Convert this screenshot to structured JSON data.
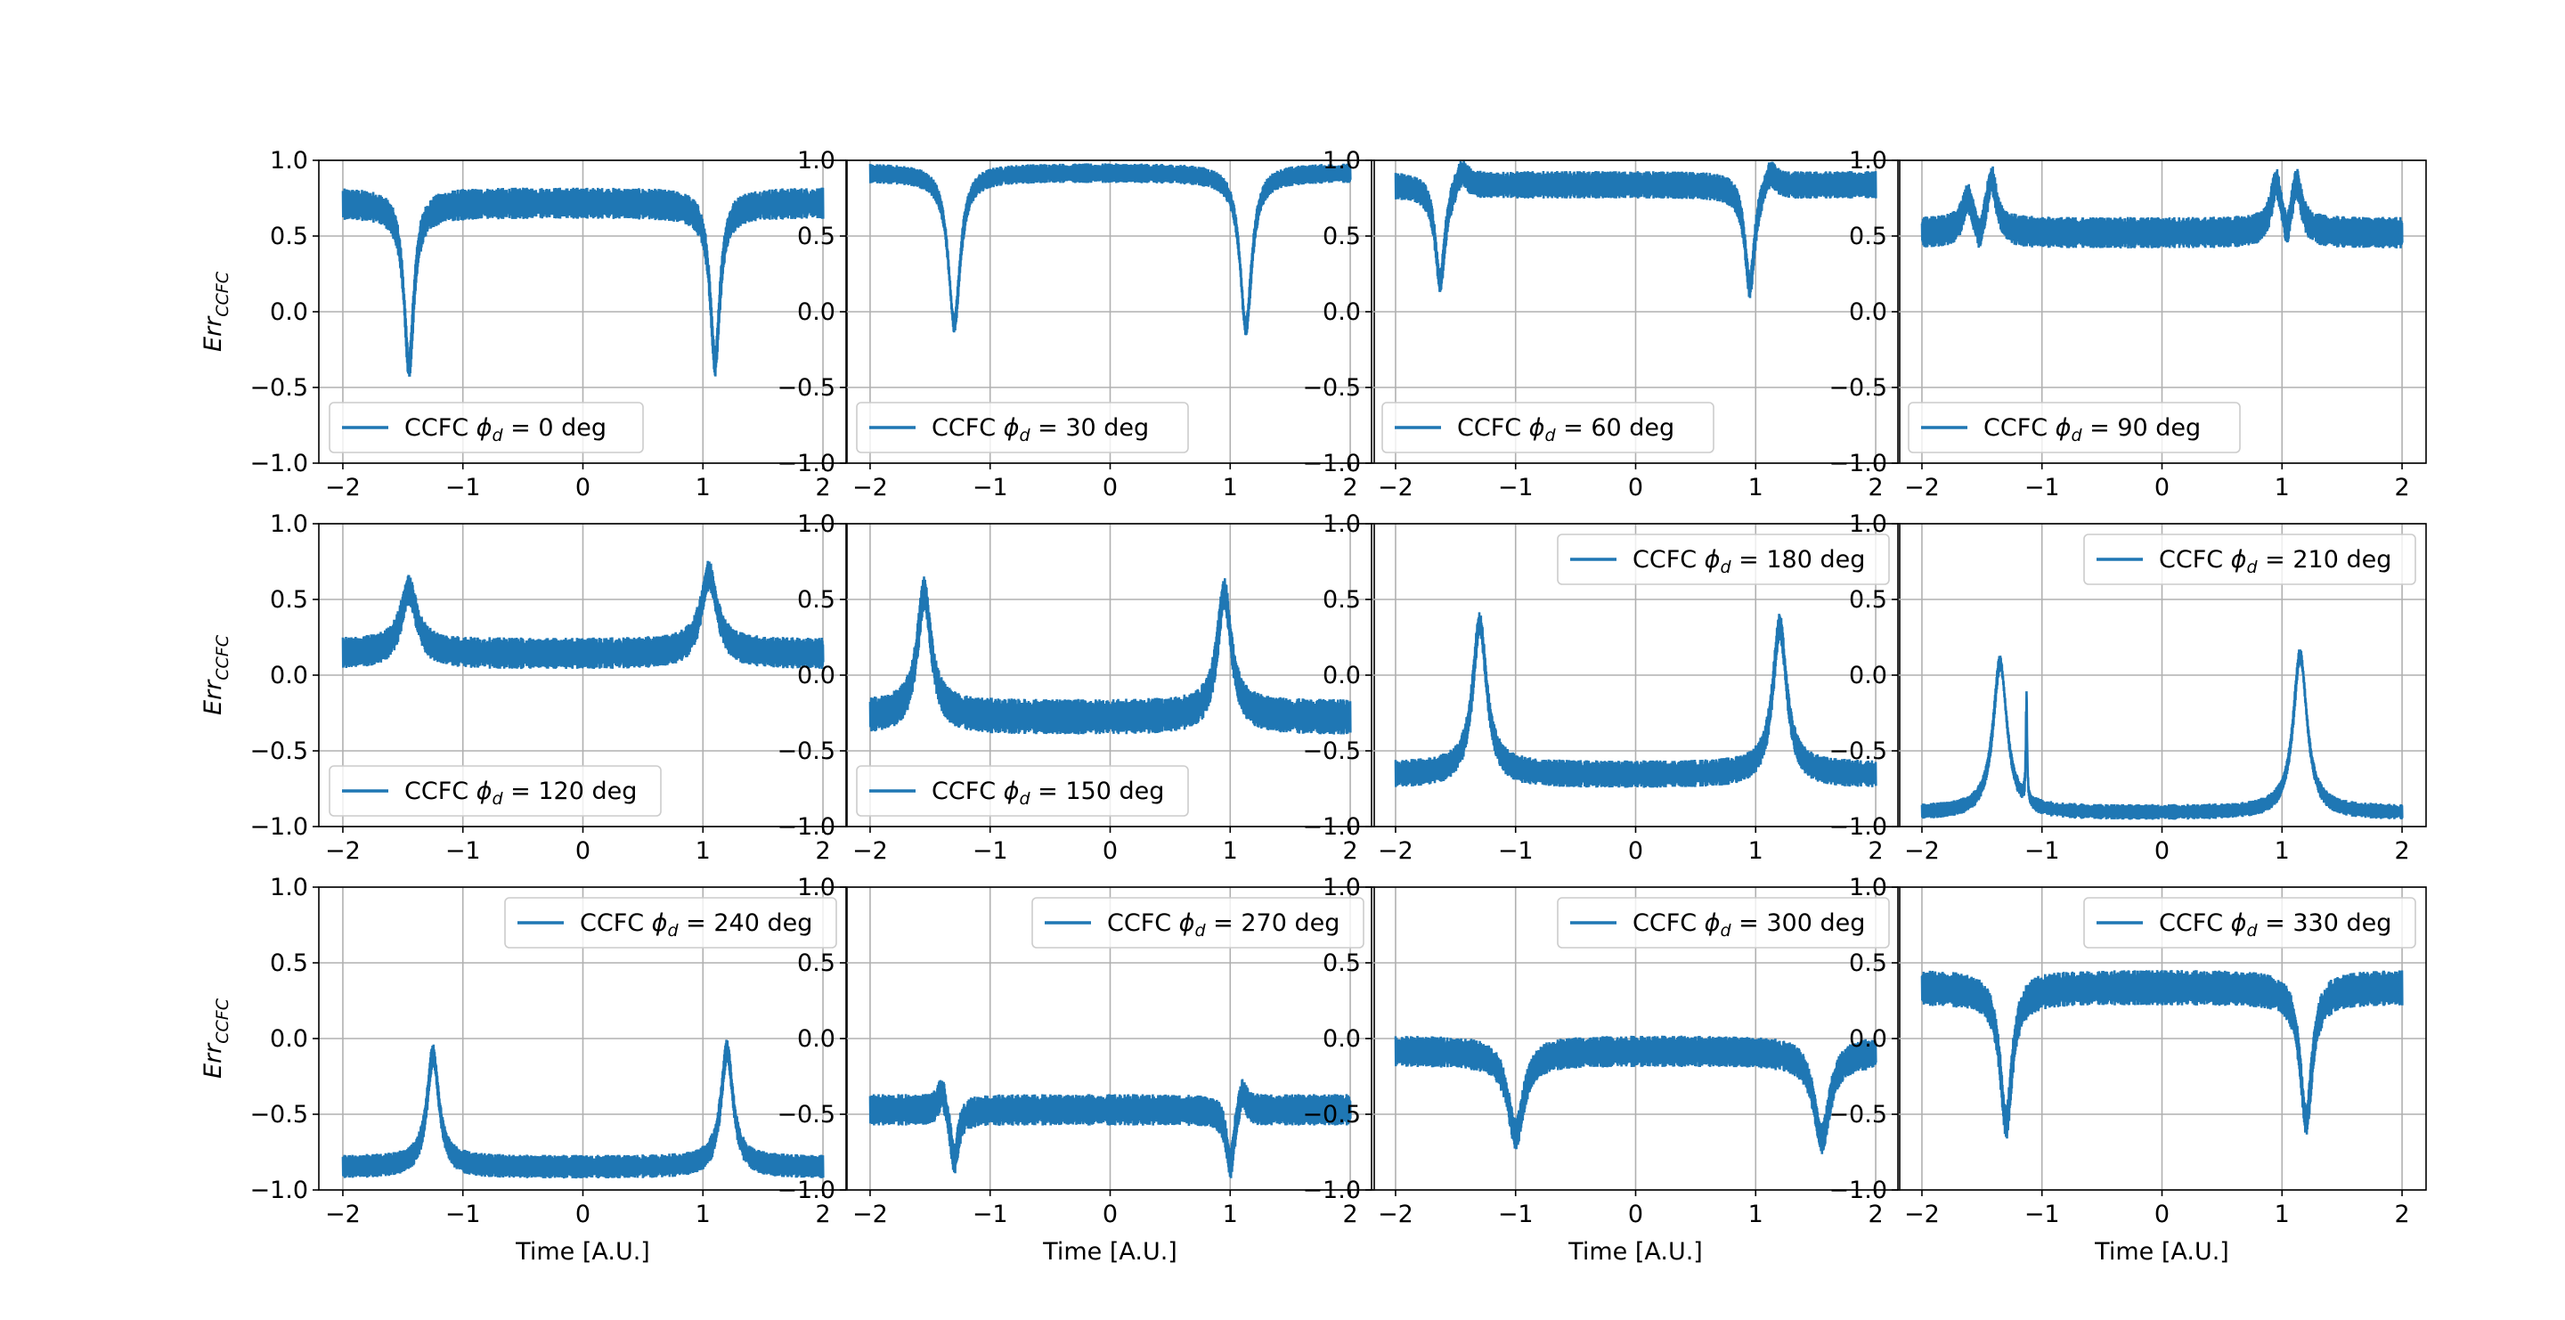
{
  "figure": {
    "series_color": "#1f77b4",
    "x_label": "Time [A.U.]",
    "y_label_base": "Err",
    "y_label_sub": "CCFC"
  },
  "chart_data": [
    {
      "type": "line",
      "legend": "CCFC φd = 0 deg",
      "legend_prefix": "CCFC ",
      "legend_suffix": " =  0 deg",
      "legend_loc": "lower-left",
      "xlim": [
        -2,
        2
      ],
      "ylim": [
        -1,
        1
      ],
      "xticks": [
        -2,
        -1,
        0,
        1,
        2
      ],
      "yticks": [
        -1.0,
        -0.5,
        0.0,
        0.5,
        1.0
      ],
      "baseline": 0.72,
      "spread": 0.08,
      "features": [
        {
          "x": -1.45,
          "depth": -1.08,
          "width": 0.05
        },
        {
          "x": 1.1,
          "depth": -1.05,
          "width": 0.05
        }
      ]
    },
    {
      "type": "line",
      "legend": "CCFC φd = 30 deg",
      "legend_prefix": "CCFC ",
      "legend_suffix": " =  30 deg",
      "legend_loc": "lower-left",
      "xlim": [
        -2,
        2
      ],
      "ylim": [
        -1,
        1
      ],
      "xticks": [
        -2,
        -1,
        0,
        1,
        2
      ],
      "yticks": [
        -1.0,
        -0.5,
        0.0,
        0.5,
        1.0
      ],
      "baseline": 0.92,
      "spread": 0.05,
      "features": [
        {
          "x": -1.3,
          "depth": -1.0,
          "width": 0.06
        },
        {
          "x": 1.13,
          "depth": -1.02,
          "width": 0.06
        }
      ]
    },
    {
      "type": "line",
      "legend": "CCFC φd = 60 deg",
      "legend_prefix": "CCFC ",
      "legend_suffix": " =  60 deg",
      "legend_loc": "lower-left",
      "xlim": [
        -2,
        2
      ],
      "ylim": [
        -1,
        1
      ],
      "xticks": [
        -2,
        -1,
        0,
        1,
        2
      ],
      "yticks": [
        -1.0,
        -0.5,
        0.0,
        0.5,
        1.0
      ],
      "baseline": 0.84,
      "spread": 0.07,
      "features": [
        {
          "x": -1.63,
          "depth": -0.65,
          "width": 0.05
        },
        {
          "x": -1.45,
          "depth": 0.12,
          "width": 0.06
        },
        {
          "x": 0.95,
          "depth": -0.68,
          "width": 0.05
        },
        {
          "x": 1.12,
          "depth": 0.12,
          "width": 0.06
        }
      ]
    },
    {
      "type": "line",
      "legend": "CCFC φd = 90 deg",
      "legend_prefix": "CCFC ",
      "legend_suffix": " =  90 deg",
      "legend_loc": "lower-left",
      "xlim": [
        -2,
        2
      ],
      "ylim": [
        -1,
        1
      ],
      "xticks": [
        -2,
        -1,
        0,
        1,
        2
      ],
      "yticks": [
        -1.0,
        -0.5,
        0.0,
        0.5,
        1.0
      ],
      "baseline": 0.52,
      "spread": 0.08,
      "features": [
        {
          "x": -1.62,
          "depth": 0.22,
          "width": 0.05
        },
        {
          "x": -1.52,
          "depth": -0.12,
          "width": 0.03
        },
        {
          "x": -1.42,
          "depth": 0.35,
          "width": 0.05
        },
        {
          "x": 0.95,
          "depth": 0.32,
          "width": 0.05
        },
        {
          "x": 1.04,
          "depth": -0.14,
          "width": 0.03
        },
        {
          "x": 1.12,
          "depth": 0.32,
          "width": 0.05
        }
      ]
    },
    {
      "type": "line",
      "legend": "CCFC φd = 120 deg",
      "legend_prefix": "CCFC ",
      "legend_suffix": " =  120 deg",
      "legend_loc": "lower-left",
      "xlim": [
        -2,
        2
      ],
      "ylim": [
        -1,
        1
      ],
      "xticks": [
        -2,
        -1,
        0,
        1,
        2
      ],
      "yticks": [
        -1.0,
        -0.5,
        0.0,
        0.5,
        1.0
      ],
      "baseline": 0.14,
      "spread": 0.08,
      "features": [
        {
          "x": -1.45,
          "depth": 0.42,
          "width": 0.08
        },
        {
          "x": 1.05,
          "depth": 0.52,
          "width": 0.08
        }
      ]
    },
    {
      "type": "line",
      "legend": "CCFC φd = 150 deg",
      "legend_prefix": "CCFC ",
      "legend_suffix": " =  150 deg",
      "legend_loc": "lower-left",
      "xlim": [
        -2,
        2
      ],
      "ylim": [
        -1,
        1
      ],
      "xticks": [
        -2,
        -1,
        0,
        1,
        2
      ],
      "yticks": [
        -1.0,
        -0.5,
        0.0,
        0.5,
        1.0
      ],
      "baseline": -0.28,
      "spread": 0.09,
      "features": [
        {
          "x": -1.55,
          "depth": 0.82,
          "width": 0.07
        },
        {
          "x": 0.95,
          "depth": 0.82,
          "width": 0.07
        }
      ]
    },
    {
      "type": "line",
      "legend": "CCFC φd = 180 deg",
      "legend_prefix": "CCFC ",
      "legend_suffix": " =  180 deg",
      "legend_loc": "upper-right",
      "xlim": [
        -2,
        2
      ],
      "ylim": [
        -1,
        1
      ],
      "xticks": [
        -2,
        -1,
        0,
        1,
        2
      ],
      "yticks": [
        -1.0,
        -0.5,
        0.0,
        0.5,
        1.0
      ],
      "baseline": -0.66,
      "spread": 0.07,
      "features": [
        {
          "x": -1.3,
          "depth": 1.0,
          "width": 0.07
        },
        {
          "x": 1.2,
          "depth": 0.98,
          "width": 0.07
        }
      ]
    },
    {
      "type": "line",
      "legend": "CCFC φd = 210 deg",
      "legend_prefix": "CCFC ",
      "legend_suffix": " =  210 deg",
      "legend_loc": "upper-right",
      "xlim": [
        -2,
        2
      ],
      "ylim": [
        -1,
        1
      ],
      "xticks": [
        -2,
        -1,
        0,
        1,
        2
      ],
      "yticks": [
        -1.0,
        -0.5,
        0.0,
        0.5,
        1.0
      ],
      "baseline": -0.91,
      "spread": 0.04,
      "features": [
        {
          "x": -1.35,
          "depth": 0.99,
          "width": 0.07
        },
        {
          "x": -1.13,
          "depth": 0.7,
          "width": 0.006
        },
        {
          "x": 1.15,
          "depth": 1.04,
          "width": 0.07
        }
      ]
    },
    {
      "type": "line",
      "legend": "CCFC φd = 240 deg",
      "legend_prefix": "CCFC ",
      "legend_suffix": " =  240 deg",
      "legend_loc": "upper-right",
      "xlim": [
        -2,
        2
      ],
      "ylim": [
        -1,
        1
      ],
      "xticks": [
        -2,
        -1,
        0,
        1,
        2
      ],
      "yticks": [
        -1.0,
        -0.5,
        0.0,
        0.5,
        1.0
      ],
      "baseline": -0.85,
      "spread": 0.06,
      "features": [
        {
          "x": -1.25,
          "depth": 0.74,
          "width": 0.06
        },
        {
          "x": 1.2,
          "depth": 0.77,
          "width": 0.06
        }
      ]
    },
    {
      "type": "line",
      "legend": "CCFC φd = 270 deg",
      "legend_prefix": "CCFC ",
      "legend_suffix": " =  270 deg",
      "legend_loc": "upper-right",
      "xlim": [
        -2,
        2
      ],
      "ylim": [
        -1,
        1
      ],
      "xticks": [
        -2,
        -1,
        0,
        1,
        2
      ],
      "yticks": [
        -1.0,
        -0.5,
        0.0,
        0.5,
        1.0
      ],
      "baseline": -0.47,
      "spread": 0.08,
      "features": [
        {
          "x": -1.4,
          "depth": 0.16,
          "width": 0.04
        },
        {
          "x": -1.3,
          "depth": -0.35,
          "width": 0.04
        },
        {
          "x": 1.0,
          "depth": -0.38,
          "width": 0.04
        },
        {
          "x": 1.1,
          "depth": 0.16,
          "width": 0.04
        }
      ]
    },
    {
      "type": "line",
      "legend": "CCFC φd = 300 deg",
      "legend_prefix": "CCFC ",
      "legend_suffix": " =  300 deg",
      "legend_loc": "upper-right",
      "xlim": [
        -2,
        2
      ],
      "ylim": [
        -1,
        1
      ],
      "xticks": [
        -2,
        -1,
        0,
        1,
        2
      ],
      "yticks": [
        -1.0,
        -0.5,
        0.0,
        0.5,
        1.0
      ],
      "baseline": -0.08,
      "spread": 0.08,
      "features": [
        {
          "x": -1.0,
          "depth": -0.55,
          "width": 0.08
        },
        {
          "x": 1.55,
          "depth": -0.58,
          "width": 0.08
        }
      ]
    },
    {
      "type": "line",
      "legend": "CCFC φd = 330 deg",
      "legend_prefix": "CCFC ",
      "legend_suffix": " =  330 deg",
      "legend_loc": "upper-right",
      "xlim": [
        -2,
        2
      ],
      "ylim": [
        -1,
        1
      ],
      "xticks": [
        -2,
        -1,
        0,
        1,
        2
      ],
      "yticks": [
        -1.0,
        -0.5,
        0.0,
        0.5,
        1.0
      ],
      "baseline": 0.34,
      "spread": 0.09,
      "features": [
        {
          "x": -1.3,
          "depth": -0.9,
          "width": 0.06
        },
        {
          "x": 1.2,
          "depth": -0.88,
          "width": 0.06
        }
      ]
    }
  ]
}
